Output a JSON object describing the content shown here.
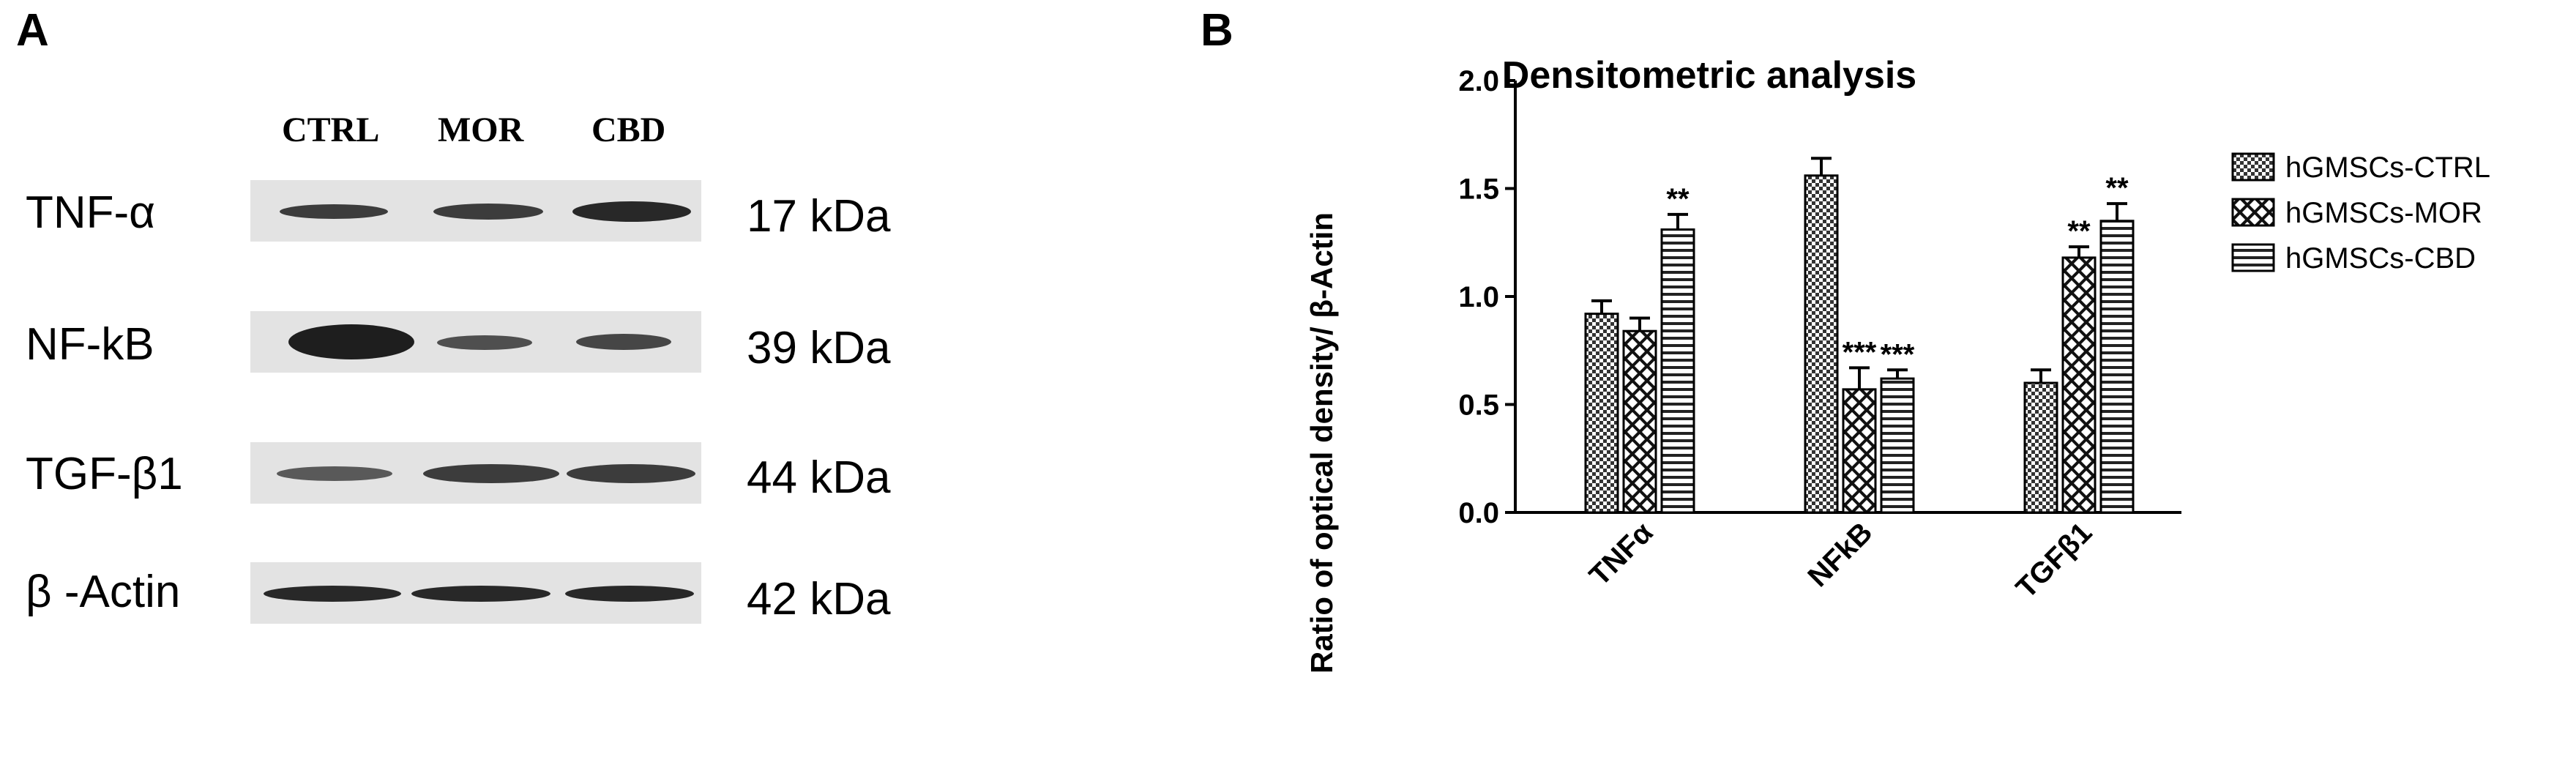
{
  "panel_a": {
    "letter": "A",
    "lanes": [
      "CTRL",
      "MOR",
      "CBD"
    ],
    "rows": [
      {
        "protein": "TNF-α",
        "kda": "17 kDa"
      },
      {
        "protein": "NF-kB",
        "kda": "39 kDa"
      },
      {
        "protein": "TGF-β1",
        "kda": "44 kDa"
      },
      {
        "protein": "β -Actin",
        "kda": "42 kDa"
      }
    ]
  },
  "panel_b": {
    "letter": "B"
  },
  "chart_data": {
    "type": "bar",
    "title": "Densitometric analysis",
    "xlabel": "",
    "ylabel": "Ratio of optical density/ β-Actin",
    "categories": [
      "TNFα",
      "NFkB",
      "TGFβ1"
    ],
    "ylim": [
      0,
      2.0
    ],
    "yticks": [
      "0.0",
      "0.5",
      "1.0",
      "1.5",
      "2.0"
    ],
    "legend_position": "right",
    "series": [
      {
        "name": "hGMSCs-CTRL",
        "pattern": "checker",
        "values": [
          0.92,
          1.56,
          0.6
        ],
        "errors": [
          0.06,
          0.08,
          0.06
        ],
        "annotations": [
          "",
          "",
          ""
        ]
      },
      {
        "name": "hGMSCs-MOR",
        "pattern": "diamond",
        "values": [
          0.84,
          0.57,
          1.18
        ],
        "errors": [
          0.06,
          0.1,
          0.05
        ],
        "annotations": [
          "",
          "***",
          "**"
        ]
      },
      {
        "name": "hGMSCs-CBD",
        "pattern": "hstripe",
        "values": [
          1.31,
          0.62,
          1.35
        ],
        "errors": [
          0.07,
          0.04,
          0.08
        ],
        "annotations": [
          "**",
          "***",
          "**"
        ]
      }
    ]
  }
}
